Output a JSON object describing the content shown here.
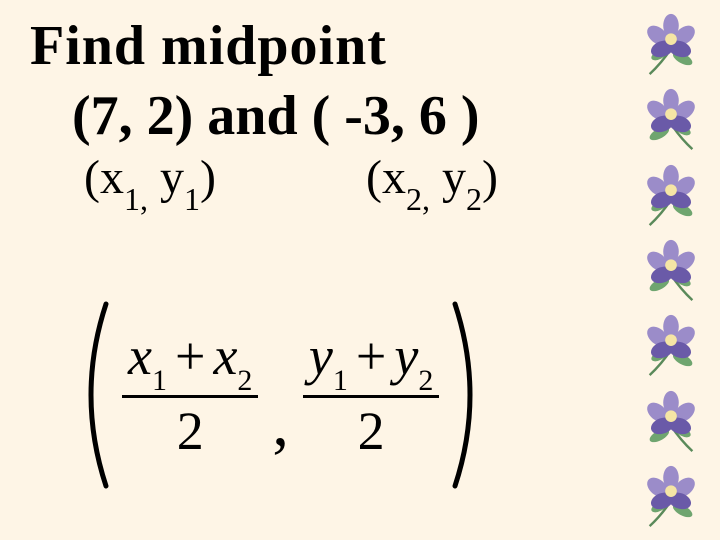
{
  "title": "Find   midpoint",
  "points_line": "(7, 2)   and   ( -3, 6 )",
  "label_p1_open": "(x",
  "label_p1_sub1": "1,",
  "label_p1_mid": " y",
  "label_p1_sub2": "1",
  "label_p1_close": ")",
  "label_p2_open": "(x",
  "label_p2_sub1": "2,",
  "label_p2_mid": " y",
  "label_p2_sub2": "2",
  "label_p2_close": ")",
  "formula": {
    "frac1": {
      "x1": "x",
      "s1": "1",
      "plus": "+",
      "x2": "x",
      "s2": "2",
      "den": "2"
    },
    "comma": ",",
    "frac2": {
      "y1": "y",
      "s1": "1",
      "plus": "+",
      "y2": "y",
      "s2": "2",
      "den": "2"
    }
  },
  "colors": {
    "background": "#fef5e6",
    "text": "#000000",
    "flower_petal": "#9b8cc9",
    "flower_dark": "#6a5aa8",
    "flower_center": "#f5e5a5",
    "leaf": "#6fa56f",
    "stem": "#5a8a5a"
  },
  "flower_count": 7
}
